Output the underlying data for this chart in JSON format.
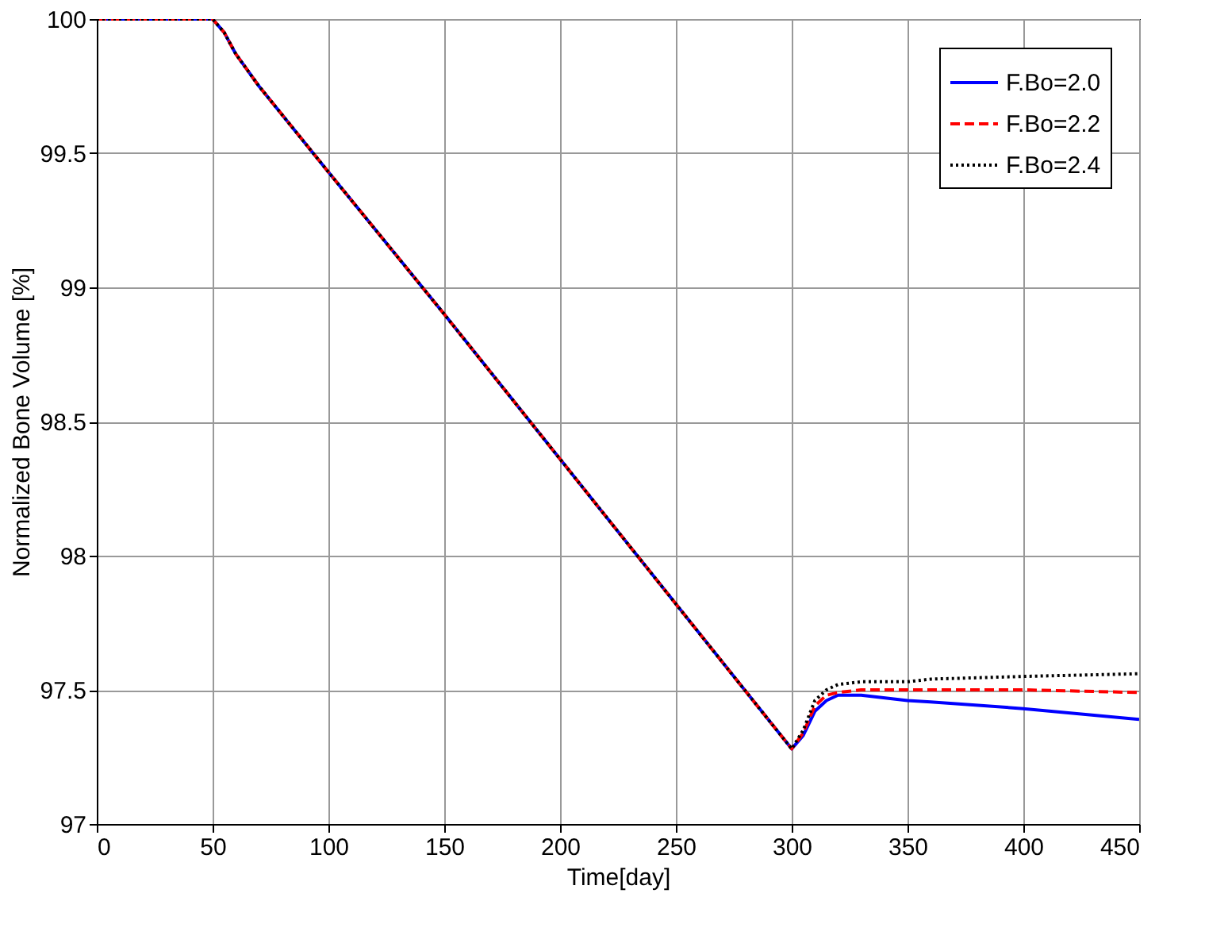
{
  "chart_data": {
    "type": "line",
    "xlabel": "Time[day]",
    "ylabel": "Normalized Bone Volume [%]",
    "x": [
      0,
      50,
      55,
      60,
      70,
      100,
      150,
      200,
      250,
      300,
      305,
      310,
      315,
      320,
      330,
      350,
      360,
      400,
      450
    ],
    "series": [
      {
        "name": "F.Bo=2.0",
        "color": "#0000ff",
        "line_style": "solid",
        "values": [
          100,
          100,
          99.95,
          99.87,
          99.75,
          99.43,
          98.9,
          98.36,
          97.82,
          97.28,
          97.33,
          97.42,
          97.46,
          97.48,
          97.48,
          97.46,
          97.455,
          97.43,
          97.39
        ]
      },
      {
        "name": "F.Bo=2.2",
        "color": "#ff0000",
        "line_style": "dashed",
        "values": [
          100,
          100,
          99.95,
          99.87,
          99.75,
          99.43,
          98.9,
          98.36,
          97.82,
          97.28,
          97.34,
          97.44,
          97.48,
          97.49,
          97.5,
          97.5,
          97.5,
          97.5,
          97.49
        ]
      },
      {
        "name": "F.Bo=2.4",
        "color": "#000000",
        "line_style": "dotted",
        "values": [
          100,
          100,
          99.95,
          99.87,
          99.75,
          99.43,
          98.9,
          98.36,
          97.82,
          97.28,
          97.35,
          97.46,
          97.5,
          97.52,
          97.53,
          97.53,
          97.54,
          97.55,
          97.56
        ]
      }
    ],
    "xlim": [
      0,
      450
    ],
    "xticks": [
      0,
      50,
      100,
      150,
      200,
      250,
      300,
      350,
      400,
      450
    ],
    "ylim": [
      97,
      100
    ],
    "yticks": [
      97,
      97.5,
      98,
      98.5,
      99,
      99.5,
      100
    ],
    "grid": true,
    "legend": "top right"
  }
}
